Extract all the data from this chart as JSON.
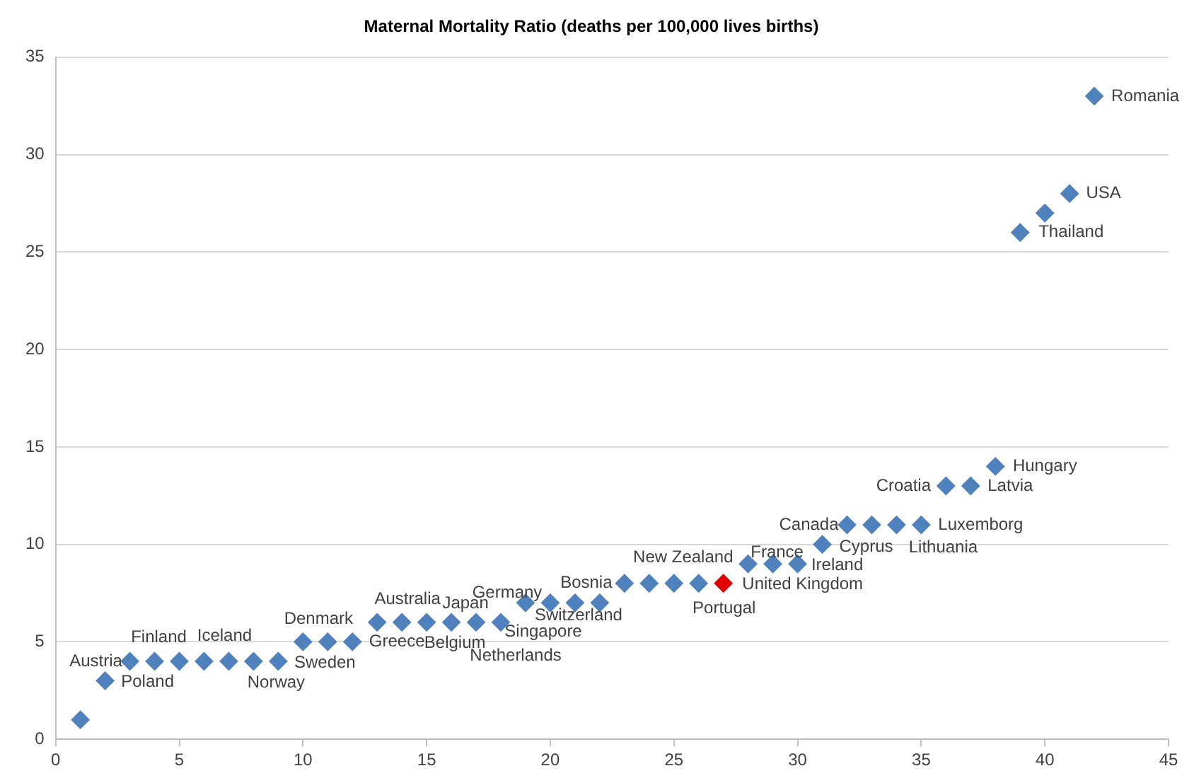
{
  "chart_data": {
    "type": "scatter",
    "title": "Maternal Mortality Ratio (deaths per 100,000 lives births)",
    "x": [
      1,
      2,
      3,
      4,
      5,
      6,
      7,
      8,
      9,
      10,
      11,
      12,
      13,
      14,
      15,
      16,
      17,
      18,
      19,
      20,
      21,
      22,
      23,
      24,
      25,
      26,
      27,
      28,
      29,
      30,
      31,
      32,
      33,
      34,
      35,
      36,
      37,
      38,
      39,
      40,
      41,
      42
    ],
    "series": [
      {
        "values": [
          1,
          3,
          4,
          4,
          4,
          4,
          4,
          4,
          4,
          5,
          5,
          5,
          6,
          6,
          6,
          6,
          6,
          6,
          7,
          7,
          7,
          7,
          8,
          8,
          8,
          8,
          8,
          9,
          9,
          9,
          10,
          11,
          11,
          11,
          11,
          13,
          13,
          14,
          26,
          27,
          28,
          33
        ],
        "color": "#4f81bd",
        "colors": [
          null,
          null,
          null,
          null,
          null,
          null,
          null,
          null,
          null,
          null,
          null,
          null,
          null,
          null,
          null,
          null,
          null,
          null,
          null,
          null,
          null,
          null,
          null,
          null,
          null,
          null,
          "#e00000",
          null,
          null,
          null,
          null,
          null,
          null,
          null,
          null,
          null,
          null,
          null,
          null,
          null,
          null,
          null
        ]
      }
    ],
    "xlim": [
      0,
      45
    ],
    "xticks": [
      0,
      5,
      10,
      15,
      20,
      25,
      30,
      35,
      40,
      45
    ],
    "ylim": [
      0,
      35
    ],
    "yticks": [
      0,
      5,
      10,
      15,
      20,
      25,
      30,
      35
    ],
    "grid": "y",
    "legend": false,
    "marker": "diamond",
    "annotations": [
      {
        "text": "Austria",
        "x": 3,
        "y": 4
      },
      {
        "text": "Poland",
        "x": 2,
        "y": 3
      },
      {
        "text": "Finland",
        "x": 4,
        "y": 4
      },
      {
        "text": "Iceland",
        "x": 7,
        "y": 4
      },
      {
        "text": "Norway",
        "x": 8,
        "y": 4
      },
      {
        "text": "Sweden",
        "x": 9,
        "y": 4
      },
      {
        "text": "Denmark",
        "x": 10,
        "y": 5
      },
      {
        "text": "Greece",
        "x": 13,
        "y": 6
      },
      {
        "text": "Belgium",
        "x": 15,
        "y": 6
      },
      {
        "text": "Australia",
        "x": 14,
        "y": 6
      },
      {
        "text": "Japan",
        "x": 16,
        "y": 6
      },
      {
        "text": "Singapore",
        "x": 18,
        "y": 6
      },
      {
        "text": "Netherlands",
        "x": 17,
        "y": 6
      },
      {
        "text": "Germany",
        "x": 19,
        "y": 7
      },
      {
        "text": "Switzerland",
        "x": 20,
        "y": 7
      },
      {
        "text": "Bosnia",
        "x": 23,
        "y": 8
      },
      {
        "text": "New Zealand",
        "x": 24,
        "y": 8
      },
      {
        "text": "Portugal",
        "x": 26,
        "y": 8
      },
      {
        "text": "United Kingdom",
        "x": 27,
        "y": 8
      },
      {
        "text": "France",
        "x": 29,
        "y": 9
      },
      {
        "text": "Ireland",
        "x": 30,
        "y": 9
      },
      {
        "text": "Canada",
        "x": 32,
        "y": 11
      },
      {
        "text": "Cyprus",
        "x": 31,
        "y": 10
      },
      {
        "text": "Lithuania",
        "x": 34,
        "y": 11
      },
      {
        "text": "Luxemborg",
        "x": 35,
        "y": 11
      },
      {
        "text": "Croatia",
        "x": 36,
        "y": 13
      },
      {
        "text": "Latvia",
        "x": 37,
        "y": 13
      },
      {
        "text": "Hungary",
        "x": 38,
        "y": 14
      },
      {
        "text": "Thailand",
        "x": 39,
        "y": 26
      },
      {
        "text": "USA",
        "x": 41,
        "y": 28
      },
      {
        "text": "Romania",
        "x": 42,
        "y": 33
      }
    ]
  }
}
